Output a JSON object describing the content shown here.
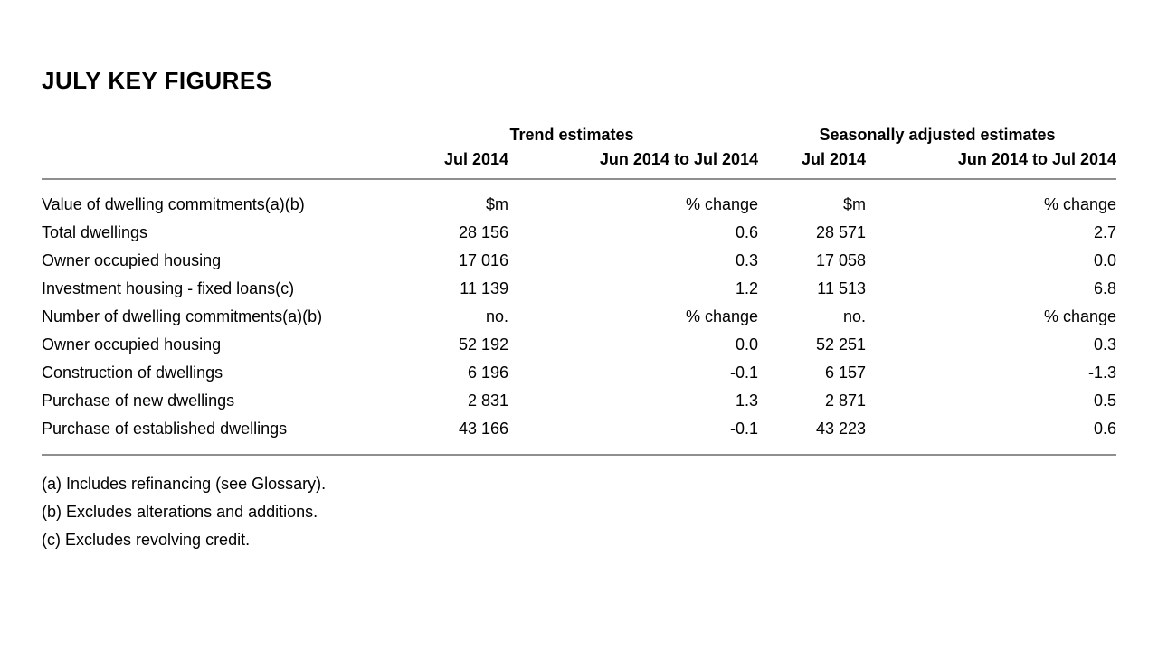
{
  "page": {
    "title": "JULY KEY FIGURES"
  },
  "colors": {
    "text": "#000000",
    "rule": "#8f8f8f",
    "background": "#ffffff"
  },
  "table": {
    "group_headers": [
      "Trend estimates",
      "Seasonally adjusted estimates"
    ],
    "col_headers": [
      "Jul 2014",
      "Jun 2014 to Jul 2014",
      "Jul 2014",
      "Jun 2014 to Jul 2014"
    ],
    "rows": [
      {
        "label": "Value of dwelling commitments(a)(b)",
        "values": [
          "$m",
          "% change",
          "$m",
          "% change"
        ]
      },
      {
        "label": "Total dwellings",
        "values": [
          "28 156",
          "0.6",
          "28 571",
          "2.7"
        ]
      },
      {
        "label": "Owner occupied housing",
        "values": [
          "17 016",
          "0.3",
          "17 058",
          "0.0"
        ]
      },
      {
        "label": "Investment housing - fixed loans(c)",
        "values": [
          "11 139",
          "1.2",
          "11 513",
          "6.8"
        ]
      },
      {
        "label": "Number of dwelling commitments(a)(b)",
        "values": [
          "no.",
          "% change",
          "no.",
          "% change"
        ]
      },
      {
        "label": "Owner occupied housing",
        "values": [
          "52 192",
          "0.0",
          "52 251",
          "0.3"
        ]
      },
      {
        "label": "Construction of dwellings",
        "values": [
          "6 196",
          "-0.1",
          "6 157",
          "-1.3"
        ]
      },
      {
        "label": "Purchase of new dwellings",
        "values": [
          "2 831",
          "1.3",
          "2 871",
          "0.5"
        ]
      },
      {
        "label": "Purchase of established dwellings",
        "values": [
          "43 166",
          "-0.1",
          "43 223",
          "0.6"
        ]
      }
    ]
  },
  "footnotes": [
    "(a) Includes refinancing (see Glossary).",
    "(b) Excludes alterations and additions.",
    "(c) Excludes revolving credit."
  ]
}
